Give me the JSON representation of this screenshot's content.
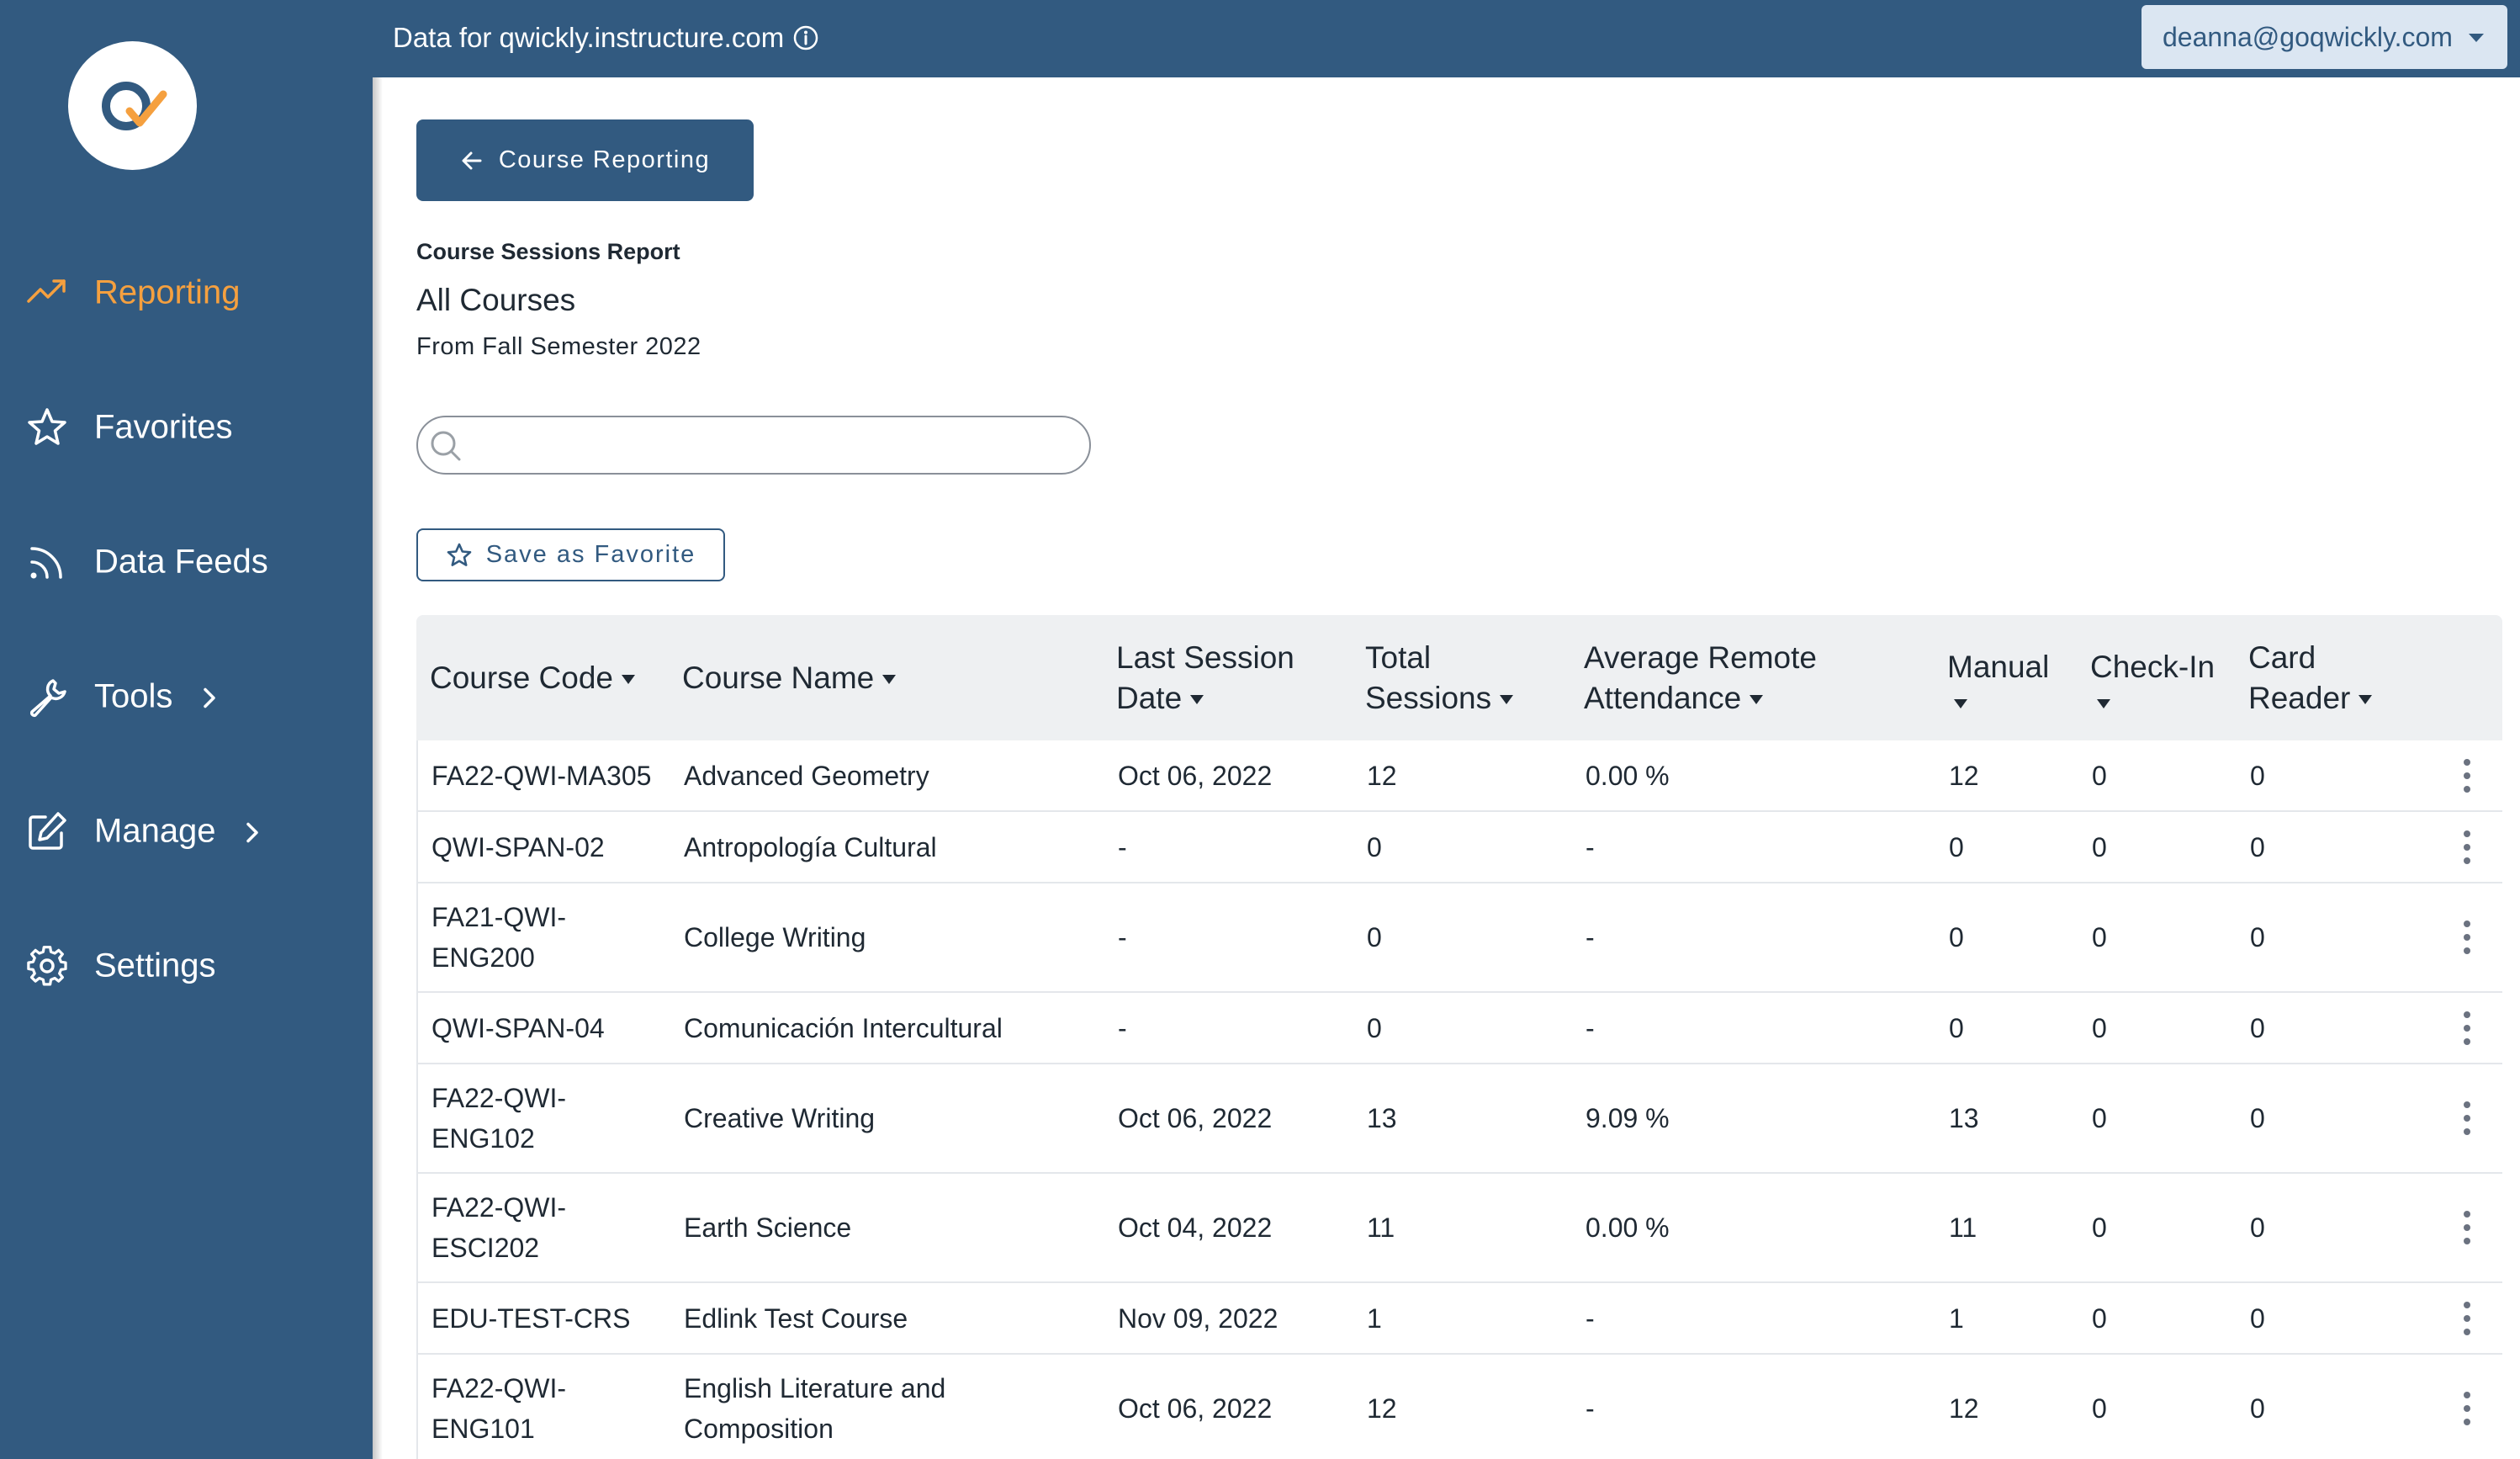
{
  "topbar": {
    "data_for": "Data for qwickly.instructure.com",
    "user_email": "deanna@goqwickly.com"
  },
  "sidebar": {
    "items": [
      {
        "label": "Reporting",
        "icon": "trending-up-icon",
        "active": true
      },
      {
        "label": "Favorites",
        "icon": "star-icon",
        "active": false
      },
      {
        "label": "Data Feeds",
        "icon": "rss-icon",
        "active": false
      },
      {
        "label": "Tools",
        "icon": "wrench-icon",
        "active": false,
        "has_submenu": true
      },
      {
        "label": "Manage",
        "icon": "edit-icon",
        "active": false,
        "has_submenu": true
      },
      {
        "label": "Settings",
        "icon": "gear-icon",
        "active": false
      }
    ]
  },
  "main": {
    "back_button_label": "Course Reporting",
    "report_label": "Course Sessions Report",
    "report_title": "All Courses",
    "report_subtitle": "From Fall Semester 2022",
    "search_value": "",
    "favorite_button_label": "Save as Favorite"
  },
  "table": {
    "headers": [
      "Course Code",
      "Course Name",
      "Last Session Date",
      "Total Sessions",
      "Average Remote Attendance",
      "Manual",
      "Check-In",
      "Card Reader"
    ],
    "rows": [
      {
        "code": "FA22-QWI-MA305",
        "name": "Advanced Geometry",
        "last": "Oct 06, 2022",
        "total": "12",
        "avg": "0.00 %",
        "manual": "12",
        "checkin": "0",
        "card": "0"
      },
      {
        "code": "QWI-SPAN-02",
        "name": "Antropología Cultural",
        "last": "-",
        "total": "0",
        "avg": "-",
        "manual": "0",
        "checkin": "0",
        "card": "0"
      },
      {
        "code": "FA21-QWI-ENG200",
        "name": "College Writing",
        "last": "-",
        "total": "0",
        "avg": "-",
        "manual": "0",
        "checkin": "0",
        "card": "0"
      },
      {
        "code": "QWI-SPAN-04",
        "name": "Comunicación Intercultural",
        "last": "-",
        "total": "0",
        "avg": "-",
        "manual": "0",
        "checkin": "0",
        "card": "0"
      },
      {
        "code": "FA22-QWI-ENG102",
        "name": "Creative Writing",
        "last": "Oct 06, 2022",
        "total": "13",
        "avg": "9.09 %",
        "manual": "13",
        "checkin": "0",
        "card": "0"
      },
      {
        "code": "FA22-QWI-ESCI202",
        "name": "Earth Science",
        "last": "Oct 04, 2022",
        "total": "11",
        "avg": "0.00 %",
        "manual": "11",
        "checkin": "0",
        "card": "0"
      },
      {
        "code": "EDU-TEST-CRS",
        "name": "Edlink Test Course",
        "last": "Nov 09, 2022",
        "total": "1",
        "avg": "-",
        "manual": "1",
        "checkin": "0",
        "card": "0"
      },
      {
        "code": "FA22-QWI-ENG101",
        "name": "English Literature and Composition",
        "last": "Oct 06, 2022",
        "total": "12",
        "avg": "-",
        "manual": "12",
        "checkin": "0",
        "card": "0"
      }
    ]
  },
  "colors": {
    "sidebar_bg": "#325a80",
    "active_nav": "#f5a03f",
    "user_button_bg": "#dbe6f2",
    "table_header_bg": "#eef0f2"
  }
}
